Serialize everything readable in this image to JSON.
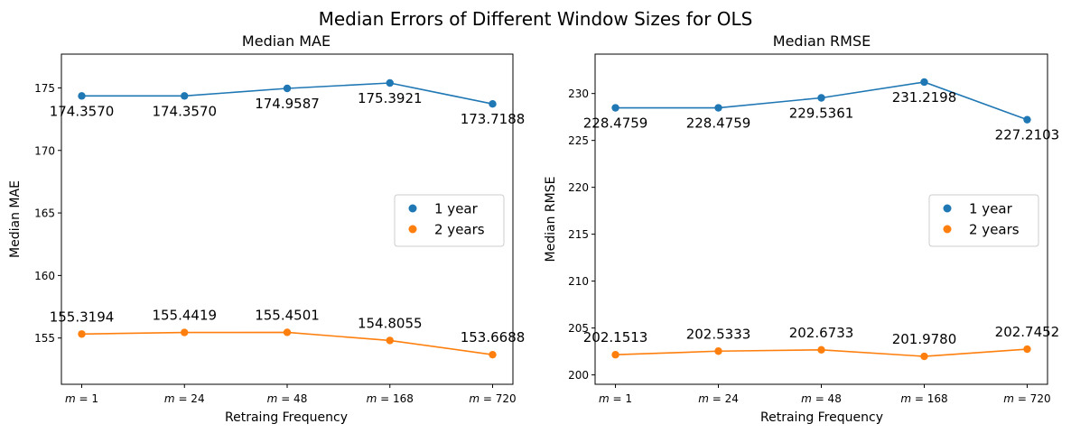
{
  "suptitle": "Median Errors of Different Window Sizes for OLS",
  "colors": {
    "series1": "#1f77b4",
    "series2": "#ff7f0e"
  },
  "chart_data": [
    {
      "type": "line",
      "title": "Median MAE",
      "xlabel": "Retraing Frequency",
      "ylabel": "Median MAE",
      "categories": [
        "m = 1",
        "m = 24",
        "m = 48",
        "m = 168",
        "m = 720"
      ],
      "ylim": [
        151.3,
        177.7
      ],
      "yticks": [
        155,
        160,
        165,
        170,
        175
      ],
      "legend_position": "center-right",
      "series": [
        {
          "name": "1 year",
          "values": [
            174.357,
            174.357,
            174.9587,
            175.3921,
            173.7188
          ],
          "labels": [
            "174.3570",
            "174.3570",
            "174.9587",
            "175.3921",
            "173.7188"
          ]
        },
        {
          "name": "2 years",
          "values": [
            155.3194,
            155.4419,
            155.4501,
            154.8055,
            153.6688
          ],
          "labels": [
            "155.3194",
            "155.4419",
            "155.4501",
            "154.8055",
            "153.6688"
          ]
        }
      ]
    },
    {
      "type": "line",
      "title": "Median RMSE",
      "xlabel": "Retraing Frequency",
      "ylabel": "Median RMSE",
      "categories": [
        "m = 1",
        "m = 24",
        "m = 48",
        "m = 168",
        "m = 720"
      ],
      "ylim": [
        199.0,
        234.2
      ],
      "yticks": [
        200,
        205,
        210,
        215,
        220,
        225,
        230
      ],
      "legend_position": "center-right",
      "series": [
        {
          "name": "1 year",
          "values": [
            228.4759,
            228.4759,
            229.5361,
            231.2198,
            227.2103
          ],
          "labels": [
            "228.4759",
            "228.4759",
            "229.5361",
            "231.2198",
            "227.2103"
          ]
        },
        {
          "name": "2 years",
          "values": [
            202.1513,
            202.5333,
            202.6733,
            201.978,
            202.7452
          ],
          "labels": [
            "202.1513",
            "202.5333",
            "202.6733",
            "201.9780",
            "202.7452"
          ]
        }
      ]
    }
  ]
}
